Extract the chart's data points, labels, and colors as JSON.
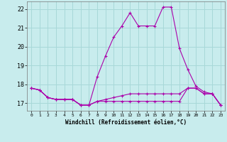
{
  "title": "",
  "xlabel": "Windchill (Refroidissement éolien,°C)",
  "ylabel": "",
  "bg_color": "#c8eced",
  "grid_color": "#a8d8d8",
  "line_color": "#aa00aa",
  "x": [
    0,
    1,
    2,
    3,
    4,
    5,
    6,
    7,
    8,
    9,
    10,
    11,
    12,
    13,
    14,
    15,
    16,
    17,
    18,
    19,
    20,
    21,
    22,
    23
  ],
  "y_main": [
    17.8,
    17.7,
    17.3,
    17.2,
    17.2,
    17.2,
    16.9,
    16.9,
    18.4,
    19.5,
    20.5,
    21.1,
    21.8,
    21.1,
    21.1,
    21.1,
    22.1,
    22.1,
    19.9,
    18.8,
    17.9,
    17.6,
    17.5,
    16.9
  ],
  "y_low1": [
    17.8,
    17.7,
    17.3,
    17.2,
    17.2,
    17.2,
    16.9,
    16.9,
    17.1,
    17.1,
    17.1,
    17.1,
    17.1,
    17.1,
    17.1,
    17.1,
    17.1,
    17.1,
    17.1,
    17.8,
    17.8,
    17.5,
    17.5,
    16.9
  ],
  "y_low2": [
    17.8,
    17.7,
    17.3,
    17.2,
    17.2,
    17.2,
    16.9,
    16.9,
    17.1,
    17.2,
    17.3,
    17.4,
    17.5,
    17.5,
    17.5,
    17.5,
    17.5,
    17.5,
    17.5,
    17.8,
    17.8,
    17.5,
    17.5,
    16.9
  ],
  "xlim": [
    -0.5,
    23.5
  ],
  "ylim": [
    16.6,
    22.4
  ],
  "yticks": [
    17,
    18,
    19,
    20,
    21,
    22
  ],
  "xticks": [
    0,
    1,
    2,
    3,
    4,
    5,
    6,
    7,
    8,
    9,
    10,
    11,
    12,
    13,
    14,
    15,
    16,
    17,
    18,
    19,
    20,
    21,
    22,
    23
  ],
  "xlabel_fontsize": 5.5,
  "ytick_fontsize": 6.0,
  "xtick_fontsize": 4.5
}
